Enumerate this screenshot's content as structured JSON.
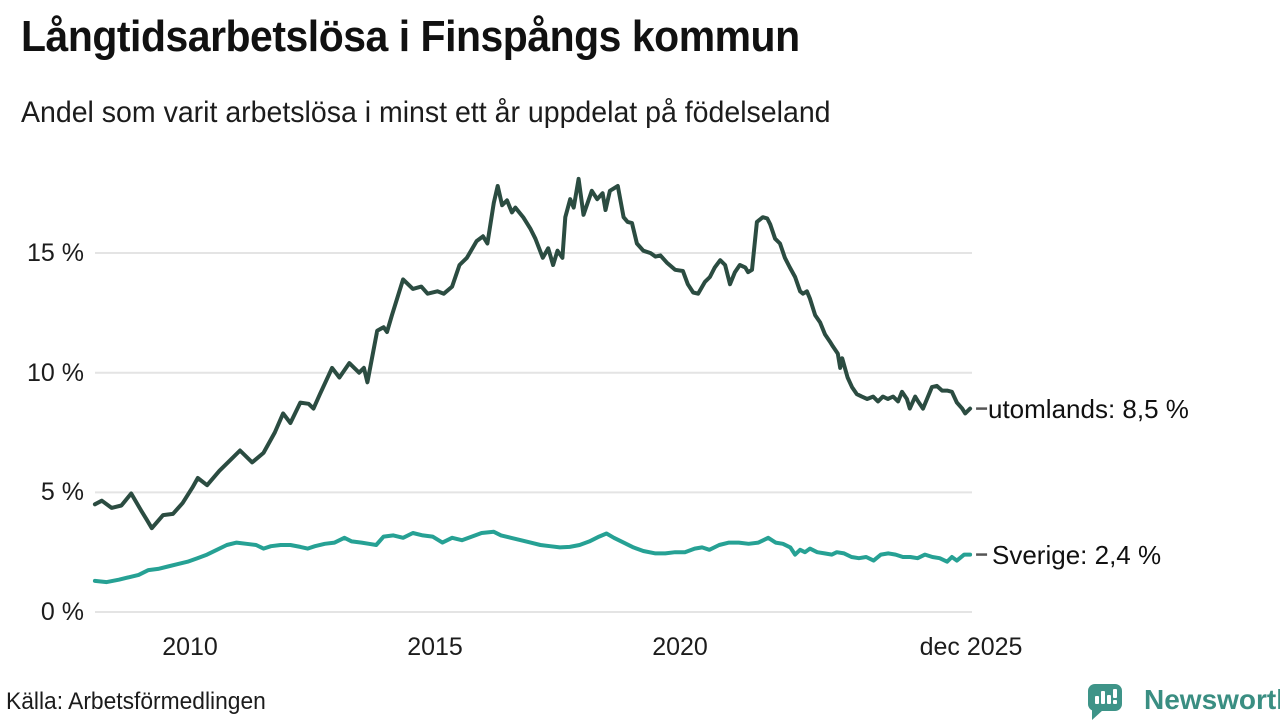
{
  "header": {
    "title": "Långtidsarbetslösa i Finspångs kommun",
    "subtitle": "Andel som varit arbetslösa i minst ett år uppdelat på födelseland"
  },
  "footer": {
    "source": "Källa: Arbetsförmedlingen",
    "brand": "Newsworthy",
    "brand_icon": "bar-chart-speech-bubble-icon",
    "brand_color": "#3a8e82"
  },
  "chart_data": {
    "type": "line",
    "title": "Långtidsarbetslösa i Finspångs kommun",
    "subtitle": "Andel som varit arbetslösa i minst ett år uppdelat på födelseland",
    "unit": "%",
    "grid": "horizontal-only",
    "legend_position": "right-end-of-line",
    "x_axis": {
      "range": [
        2008.0,
        2025.95
      ],
      "ticks": [
        {
          "label": "2010",
          "year": 2010
        },
        {
          "label": "2015",
          "year": 2015
        },
        {
          "label": "2020",
          "year": 2020
        },
        {
          "label": "dec 2025",
          "year": 2025.95
        }
      ]
    },
    "y_axis": {
      "range": [
        0,
        18.5
      ],
      "ticks": [
        {
          "label": "15 %",
          "value": 15
        },
        {
          "label": "10 %",
          "value": 10
        },
        {
          "label": "5 %",
          "value": 5
        },
        {
          "label": "0 %",
          "value": 0
        }
      ]
    },
    "gridline_color": "#e4e4e4",
    "series": [
      {
        "name": "utomlands",
        "label": "utomlands: 8,5 %",
        "last_value": 8.5,
        "color": "#2b4c41",
        "points": [
          [
            2008.06,
            4.5
          ],
          [
            2008.2,
            4.65
          ],
          [
            2008.4,
            4.35
          ],
          [
            2008.6,
            4.45
          ],
          [
            2008.8,
            4.95
          ],
          [
            2009.0,
            4.25
          ],
          [
            2009.12,
            3.85
          ],
          [
            2009.22,
            3.5
          ],
          [
            2009.45,
            4.05
          ],
          [
            2009.65,
            4.1
          ],
          [
            2009.85,
            4.55
          ],
          [
            2010.05,
            5.2
          ],
          [
            2010.16,
            5.6
          ],
          [
            2010.35,
            5.3
          ],
          [
            2010.6,
            5.9
          ],
          [
            2010.85,
            6.4
          ],
          [
            2011.02,
            6.75
          ],
          [
            2011.27,
            6.25
          ],
          [
            2011.5,
            6.65
          ],
          [
            2011.73,
            7.5
          ],
          [
            2011.9,
            8.3
          ],
          [
            2012.05,
            7.9
          ],
          [
            2012.25,
            8.75
          ],
          [
            2012.42,
            8.7
          ],
          [
            2012.52,
            8.5
          ],
          [
            2012.65,
            9.1
          ],
          [
            2012.9,
            10.2
          ],
          [
            2013.05,
            9.8
          ],
          [
            2013.25,
            10.4
          ],
          [
            2013.45,
            10.0
          ],
          [
            2013.55,
            10.2
          ],
          [
            2013.62,
            9.6
          ],
          [
            2013.82,
            11.75
          ],
          [
            2013.95,
            11.9
          ],
          [
            2014.02,
            11.7
          ],
          [
            2014.12,
            12.4
          ],
          [
            2014.35,
            13.9
          ],
          [
            2014.55,
            13.5
          ],
          [
            2014.72,
            13.6
          ],
          [
            2014.85,
            13.3
          ],
          [
            2015.05,
            13.4
          ],
          [
            2015.18,
            13.3
          ],
          [
            2015.35,
            13.6
          ],
          [
            2015.5,
            14.5
          ],
          [
            2015.65,
            14.8
          ],
          [
            2015.85,
            15.5
          ],
          [
            2015.98,
            15.7
          ],
          [
            2016.07,
            15.4
          ],
          [
            2016.2,
            17.1
          ],
          [
            2016.28,
            17.8
          ],
          [
            2016.37,
            17.0
          ],
          [
            2016.47,
            17.2
          ],
          [
            2016.57,
            16.7
          ],
          [
            2016.64,
            16.9
          ],
          [
            2016.8,
            16.5
          ],
          [
            2016.95,
            16.0
          ],
          [
            2017.05,
            15.6
          ],
          [
            2017.2,
            14.8
          ],
          [
            2017.31,
            15.2
          ],
          [
            2017.41,
            14.5
          ],
          [
            2017.5,
            15.1
          ],
          [
            2017.6,
            14.8
          ],
          [
            2017.66,
            16.5
          ],
          [
            2017.76,
            17.25
          ],
          [
            2017.83,
            16.9
          ],
          [
            2017.93,
            18.1
          ],
          [
            2018.03,
            16.6
          ],
          [
            2018.2,
            17.6
          ],
          [
            2018.31,
            17.25
          ],
          [
            2018.42,
            17.5
          ],
          [
            2018.48,
            16.8
          ],
          [
            2018.57,
            17.6
          ],
          [
            2018.73,
            17.8
          ],
          [
            2018.85,
            16.5
          ],
          [
            2018.93,
            16.3
          ],
          [
            2019.02,
            16.25
          ],
          [
            2019.12,
            15.4
          ],
          [
            2019.25,
            15.1
          ],
          [
            2019.4,
            15.0
          ],
          [
            2019.5,
            14.85
          ],
          [
            2019.6,
            14.9
          ],
          [
            2019.73,
            14.6
          ],
          [
            2019.9,
            14.3
          ],
          [
            2020.06,
            14.25
          ],
          [
            2020.16,
            13.7
          ],
          [
            2020.27,
            13.35
          ],
          [
            2020.37,
            13.3
          ],
          [
            2020.51,
            13.8
          ],
          [
            2020.61,
            14.0
          ],
          [
            2020.71,
            14.4
          ],
          [
            2020.82,
            14.7
          ],
          [
            2020.92,
            14.5
          ],
          [
            2021.02,
            13.7
          ],
          [
            2021.12,
            14.2
          ],
          [
            2021.22,
            14.5
          ],
          [
            2021.33,
            14.4
          ],
          [
            2021.39,
            14.2
          ],
          [
            2021.47,
            14.3
          ],
          [
            2021.57,
            16.3
          ],
          [
            2021.69,
            16.5
          ],
          [
            2021.78,
            16.45
          ],
          [
            2021.84,
            16.2
          ],
          [
            2021.94,
            15.6
          ],
          [
            2022.04,
            15.4
          ],
          [
            2022.14,
            14.8
          ],
          [
            2022.24,
            14.4
          ],
          [
            2022.35,
            14.0
          ],
          [
            2022.45,
            13.4
          ],
          [
            2022.51,
            13.3
          ],
          [
            2022.59,
            13.4
          ],
          [
            2022.65,
            13.1
          ],
          [
            2022.76,
            12.4
          ],
          [
            2022.86,
            12.1
          ],
          [
            2022.96,
            11.6
          ],
          [
            2023.06,
            11.3
          ],
          [
            2023.12,
            11.1
          ],
          [
            2023.22,
            10.8
          ],
          [
            2023.27,
            10.2
          ],
          [
            2023.31,
            10.6
          ],
          [
            2023.42,
            9.8
          ],
          [
            2023.51,
            9.4
          ],
          [
            2023.61,
            9.1
          ],
          [
            2023.71,
            9.0
          ],
          [
            2023.82,
            8.9
          ],
          [
            2023.94,
            9.0
          ],
          [
            2024.04,
            8.8
          ],
          [
            2024.14,
            9.0
          ],
          [
            2024.24,
            8.9
          ],
          [
            2024.35,
            9.0
          ],
          [
            2024.45,
            8.8
          ],
          [
            2024.53,
            9.2
          ],
          [
            2024.63,
            8.9
          ],
          [
            2024.69,
            8.5
          ],
          [
            2024.8,
            9.0
          ],
          [
            2024.86,
            8.8
          ],
          [
            2024.96,
            8.5
          ],
          [
            2025.04,
            8.9
          ],
          [
            2025.14,
            9.4
          ],
          [
            2025.24,
            9.45
          ],
          [
            2025.35,
            9.25
          ],
          [
            2025.45,
            9.25
          ],
          [
            2025.55,
            9.2
          ],
          [
            2025.65,
            8.75
          ],
          [
            2025.76,
            8.5
          ],
          [
            2025.82,
            8.3
          ],
          [
            2025.92,
            8.5
          ]
        ]
      },
      {
        "name": "Sverige",
        "label": "Sverige: 2,4 %",
        "last_value": 2.4,
        "color": "#26a194",
        "points": [
          [
            2008.06,
            1.3
          ],
          [
            2008.3,
            1.25
          ],
          [
            2008.55,
            1.35
          ],
          [
            2008.75,
            1.45
          ],
          [
            2008.95,
            1.55
          ],
          [
            2009.15,
            1.75
          ],
          [
            2009.35,
            1.8
          ],
          [
            2009.55,
            1.9
          ],
          [
            2009.75,
            2.0
          ],
          [
            2009.95,
            2.1
          ],
          [
            2010.15,
            2.25
          ],
          [
            2010.35,
            2.4
          ],
          [
            2010.55,
            2.6
          ],
          [
            2010.75,
            2.8
          ],
          [
            2010.95,
            2.9
          ],
          [
            2011.15,
            2.85
          ],
          [
            2011.35,
            2.8
          ],
          [
            2011.5,
            2.65
          ],
          [
            2011.65,
            2.75
          ],
          [
            2011.85,
            2.8
          ],
          [
            2012.05,
            2.8
          ],
          [
            2012.25,
            2.72
          ],
          [
            2012.4,
            2.65
          ],
          [
            2012.55,
            2.75
          ],
          [
            2012.75,
            2.85
          ],
          [
            2012.95,
            2.9
          ],
          [
            2013.15,
            3.1
          ],
          [
            2013.3,
            2.95
          ],
          [
            2013.5,
            2.9
          ],
          [
            2013.65,
            2.85
          ],
          [
            2013.8,
            2.8
          ],
          [
            2013.95,
            3.15
          ],
          [
            2014.15,
            3.2
          ],
          [
            2014.35,
            3.1
          ],
          [
            2014.55,
            3.3
          ],
          [
            2014.75,
            3.2
          ],
          [
            2014.95,
            3.15
          ],
          [
            2015.15,
            2.9
          ],
          [
            2015.35,
            3.1
          ],
          [
            2015.55,
            3.0
          ],
          [
            2015.75,
            3.15
          ],
          [
            2015.95,
            3.3
          ],
          [
            2016.2,
            3.35
          ],
          [
            2016.35,
            3.2
          ],
          [
            2016.55,
            3.1
          ],
          [
            2016.75,
            3.0
          ],
          [
            2016.95,
            2.9
          ],
          [
            2017.15,
            2.8
          ],
          [
            2017.35,
            2.75
          ],
          [
            2017.55,
            2.7
          ],
          [
            2017.75,
            2.72
          ],
          [
            2017.95,
            2.8
          ],
          [
            2018.15,
            2.95
          ],
          [
            2018.35,
            3.15
          ],
          [
            2018.5,
            3.28
          ],
          [
            2018.65,
            3.1
          ],
          [
            2018.85,
            2.9
          ],
          [
            2019.05,
            2.7
          ],
          [
            2019.25,
            2.55
          ],
          [
            2019.5,
            2.45
          ],
          [
            2019.7,
            2.45
          ],
          [
            2019.9,
            2.5
          ],
          [
            2020.1,
            2.5
          ],
          [
            2020.3,
            2.65
          ],
          [
            2020.45,
            2.7
          ],
          [
            2020.6,
            2.6
          ],
          [
            2020.8,
            2.8
          ],
          [
            2021.0,
            2.9
          ],
          [
            2021.2,
            2.9
          ],
          [
            2021.4,
            2.85
          ],
          [
            2021.6,
            2.9
          ],
          [
            2021.8,
            3.1
          ],
          [
            2021.95,
            2.9
          ],
          [
            2022.1,
            2.85
          ],
          [
            2022.25,
            2.7
          ],
          [
            2022.35,
            2.4
          ],
          [
            2022.45,
            2.6
          ],
          [
            2022.55,
            2.5
          ],
          [
            2022.65,
            2.65
          ],
          [
            2022.8,
            2.5
          ],
          [
            2022.95,
            2.45
          ],
          [
            2023.1,
            2.4
          ],
          [
            2023.2,
            2.5
          ],
          [
            2023.35,
            2.45
          ],
          [
            2023.5,
            2.3
          ],
          [
            2023.65,
            2.25
          ],
          [
            2023.8,
            2.3
          ],
          [
            2023.95,
            2.15
          ],
          [
            2024.1,
            2.4
          ],
          [
            2024.25,
            2.45
          ],
          [
            2024.4,
            2.4
          ],
          [
            2024.55,
            2.3
          ],
          [
            2024.7,
            2.3
          ],
          [
            2024.85,
            2.25
          ],
          [
            2025.0,
            2.4
          ],
          [
            2025.15,
            2.3
          ],
          [
            2025.3,
            2.25
          ],
          [
            2025.45,
            2.1
          ],
          [
            2025.55,
            2.3
          ],
          [
            2025.65,
            2.15
          ],
          [
            2025.8,
            2.4
          ],
          [
            2025.92,
            2.4
          ]
        ]
      }
    ]
  }
}
